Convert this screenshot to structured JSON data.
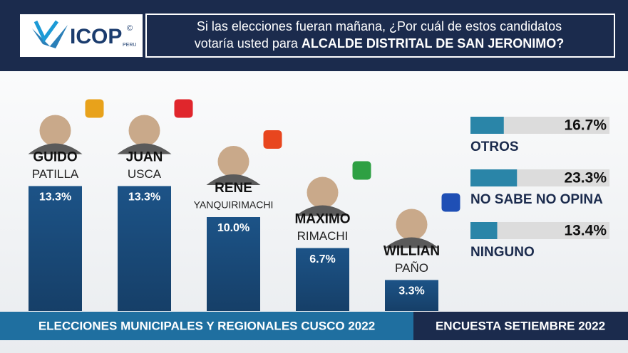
{
  "header": {
    "logo_text": "ICOP",
    "logo_sub": "PERU",
    "logo_mark": "©",
    "title_line1": "Si las elecciones fueran mañana, ¿Por cuál de estos candidatos",
    "title_line2": "votaría usted para",
    "title_emphasis": "ALCALDE DISTRITAL DE SAN JERONIMO?"
  },
  "chart_data": [
    {
      "type": "bar",
      "color": "#1c4f80",
      "categories": [
        "GUIDO",
        "JUAN",
        "RENE",
        "MAXIMO",
        "WILLIAN"
      ],
      "category_sublabels": [
        "PATILLA",
        "USCA",
        "YANQUIRIMACHI",
        "RIMACHI",
        "PAÑO"
      ],
      "values": [
        13.3,
        13.3,
        10.0,
        6.7,
        3.3
      ],
      "value_labels": [
        "13.3%",
        "13.3%",
        "10.0%",
        "6.7%",
        "3.3%"
      ]
    },
    {
      "type": "hbar",
      "color": "#2a85a8",
      "categories": [
        "OTROS",
        "NO SABE NO OPINA",
        "NINGUNO"
      ],
      "values": [
        16.7,
        23.3,
        13.4
      ],
      "value_labels": [
        "16.7%",
        "23.3%",
        "13.4%"
      ]
    }
  ],
  "footer": {
    "left": "ELECCIONES MUNICIPALES Y REGIONALES CUSCO 2022",
    "right": "ENCUESTA SETIEMBRE 2022"
  }
}
